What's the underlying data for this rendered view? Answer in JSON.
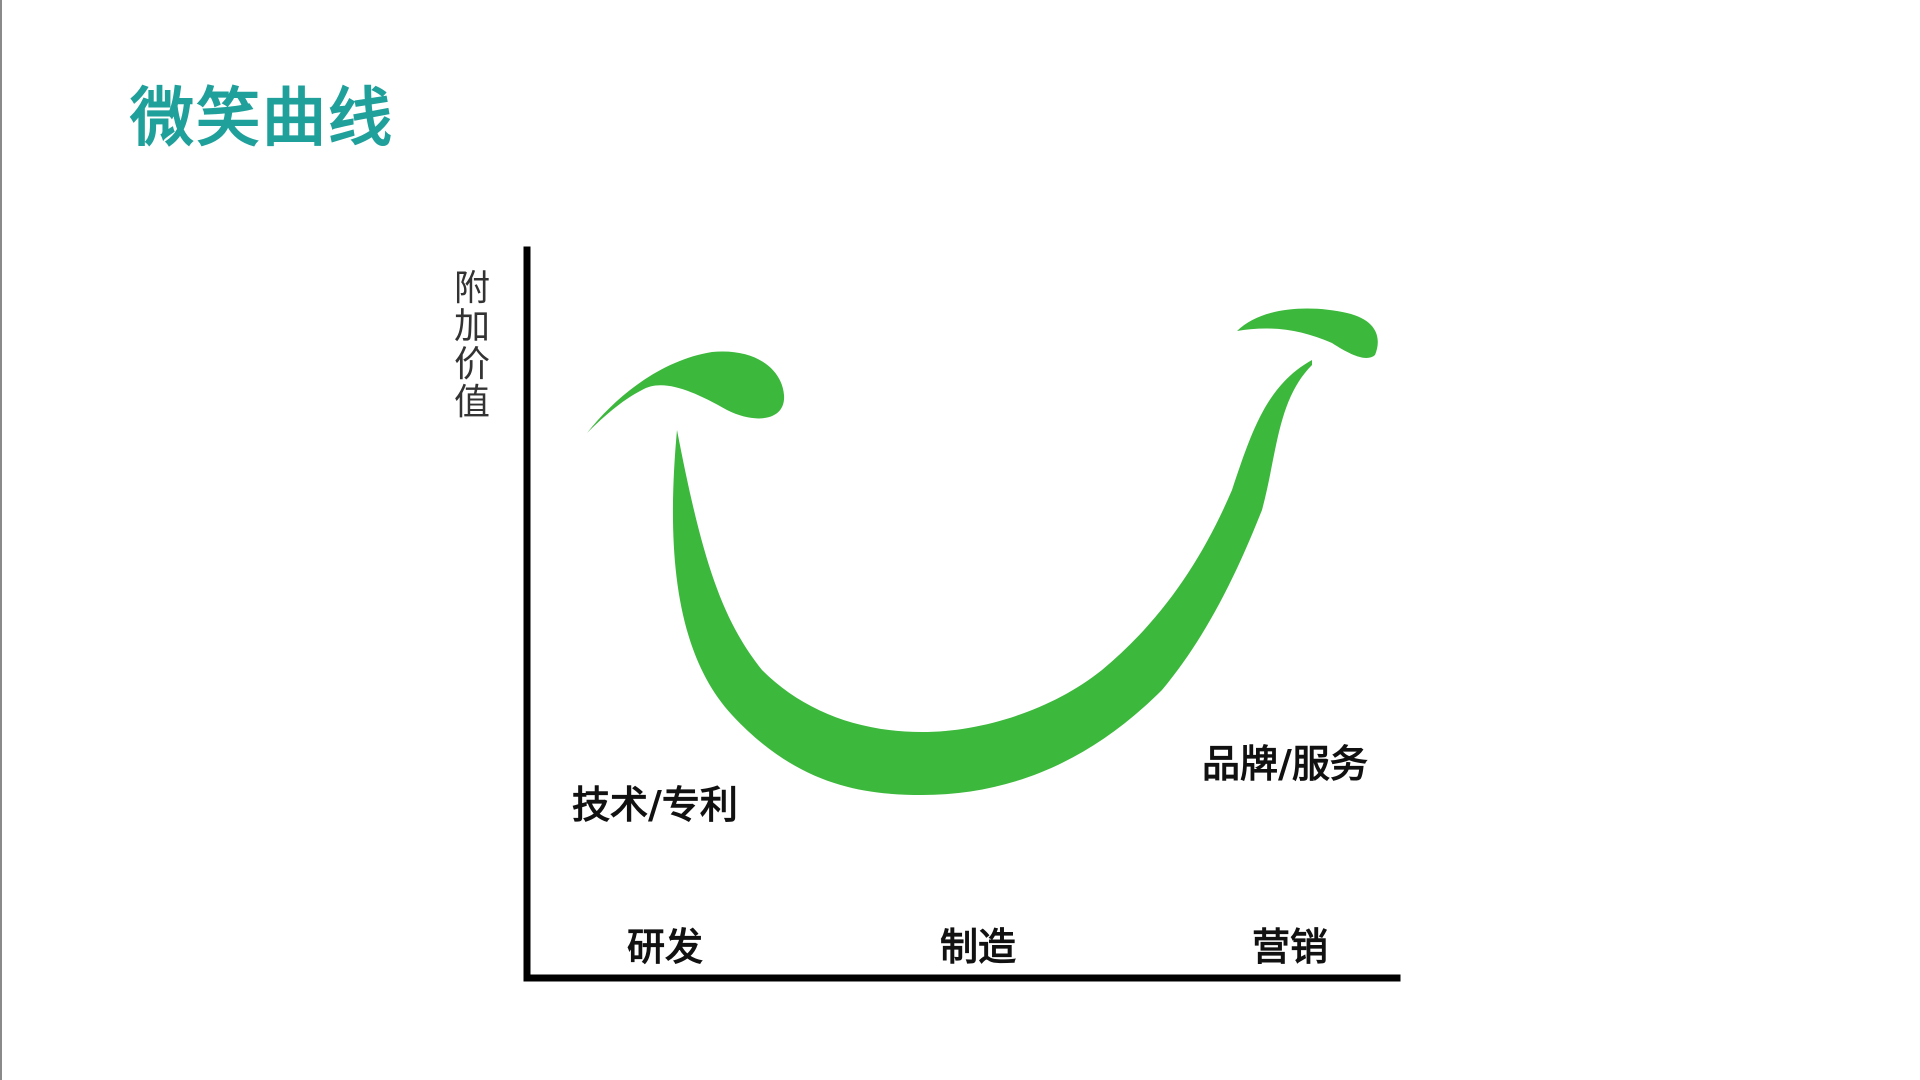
{
  "slide": {
    "title": "微笑曲线",
    "title_color": "#20a09a"
  },
  "diagram": {
    "y_axis_label": "附加价值",
    "stages": [
      "研发",
      "制造",
      "营销"
    ],
    "point_labels": {
      "left": "技术/专利",
      "right": "品牌/服务"
    },
    "smile_color": "#3cb83c",
    "axis_color": "#000000"
  }
}
